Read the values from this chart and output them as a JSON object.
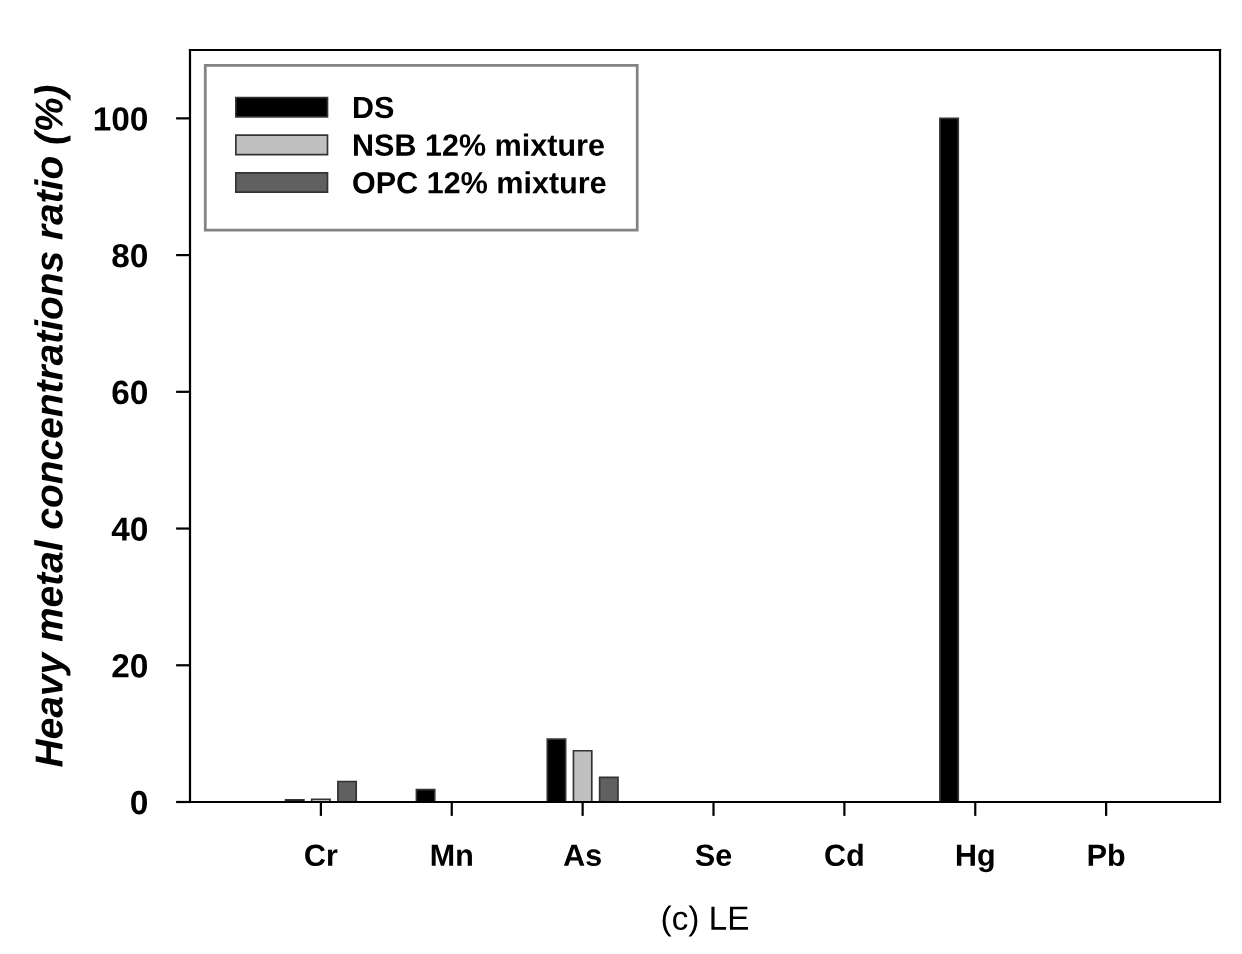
{
  "chart_data": {
    "type": "bar",
    "title": "(c) LE",
    "ylabel": "Heavy metal concentrations ratio (%)",
    "categories": [
      "Cr",
      "Mn",
      "As",
      "Se",
      "Cd",
      "Hg",
      "Pb"
    ],
    "series": [
      {
        "name": "DS",
        "color": "#000000",
        "values": [
          0.3,
          1.8,
          9.2,
          0,
          0,
          100,
          0
        ]
      },
      {
        "name": "NSB 12% mixture",
        "color": "#c0c0c0",
        "values": [
          0.4,
          0,
          7.5,
          0,
          0,
          0,
          0
        ]
      },
      {
        "name": "OPC 12% mixture",
        "color": "#606060",
        "values": [
          3,
          0,
          3.6,
          0,
          0,
          0,
          0
        ]
      }
    ],
    "ylim": [
      0,
      110
    ],
    "yticks": [
      0,
      20,
      40,
      60,
      80,
      100
    ],
    "grid": false,
    "legend": "top left"
  }
}
